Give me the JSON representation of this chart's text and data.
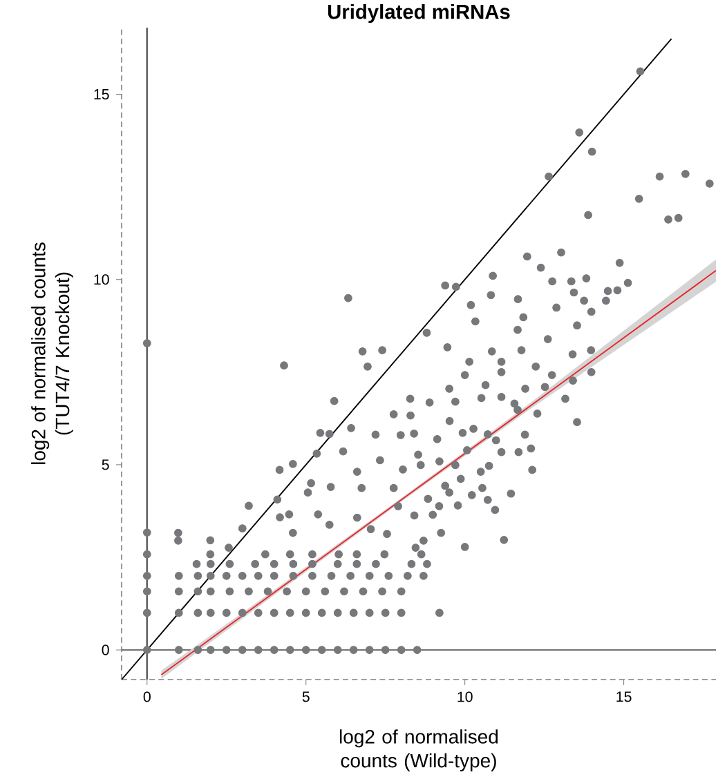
{
  "chart_data": {
    "type": "scatter",
    "title": "Uridylated miRNAs",
    "xlabel": "log2 of normalised counts (Wild-type)",
    "ylabel": "log2 of normalised counts (TUT4/7 Knockout)",
    "xlim": [
      -0.8,
      17.9
    ],
    "ylim": [
      -0.8,
      16.8
    ],
    "xticks": [
      0,
      5,
      10,
      15
    ],
    "yticks": [
      0,
      5,
      10,
      15
    ],
    "ref_lines": [
      {
        "axis": "x",
        "value": 0,
        "color": "#000000",
        "line_style": "solid"
      },
      {
        "axis": "y",
        "value": 0,
        "color": "#555555",
        "line_style": "solid"
      }
    ],
    "series": [
      {
        "color": "#77787b",
        "marker": "circle",
        "x": [
          0,
          0,
          0,
          0,
          0,
          0,
          0,
          1,
          1.6,
          2,
          2.5,
          3,
          3.5,
          4,
          4.5,
          5,
          5.5,
          6,
          6.5,
          7,
          7.5,
          8,
          8.5,
          1,
          1.6,
          2,
          2.5,
          3,
          3.5,
          4,
          4.5,
          5,
          5.5,
          6,
          6.5,
          7,
          7.5,
          8,
          9.2,
          1,
          1.6,
          2,
          2.6,
          3.2,
          3.8,
          4.4,
          5,
          5.6,
          6.2,
          6.8,
          7.4,
          8,
          1,
          1.6,
          2,
          2.5,
          3,
          3.5,
          4,
          4.6,
          5.2,
          5.8,
          6.4,
          7,
          7.6,
          8.2,
          8.7,
          1.56,
          2,
          2.6,
          3.4,
          4,
          4.6,
          5.2,
          6,
          6.6,
          7.2,
          8.32,
          8.81,
          1.99,
          3.72,
          4.5,
          5.2,
          6.03,
          6.6,
          7.47,
          8.63,
          2.57,
          8.45,
          10,
          0.98,
          1.99,
          8.7,
          11.23,
          0.98,
          4.59,
          7.55,
          9.25,
          7.04,
          3,
          5.74,
          6.61,
          4.18,
          4.47,
          5.38,
          8.41,
          8.99,
          10.95,
          3.2,
          7.9,
          9.19,
          9.78,
          4.1,
          8.84,
          10.72,
          10.22,
          11.45,
          5.06,
          9.51,
          6.75,
          7.76,
          10.55,
          5.78,
          9.38,
          5.16,
          9.87,
          6.61,
          10.5,
          4.17,
          8.05,
          12.12,
          4.59,
          8.61,
          9.7,
          10.76,
          9.2,
          7.33,
          8.53,
          5.34,
          10.07,
          6.17,
          11.15,
          11.69,
          12.08,
          10.98,
          9.13,
          7.98,
          7.19,
          11.89,
          10.72,
          5.74,
          8.4,
          5.45,
          9.93,
          10.27,
          6.42,
          13.53,
          9.52,
          8.29,
          7.76,
          12.28,
          11.66,
          11.56,
          8.89,
          9.7,
          5.89,
          8.28,
          13.16,
          10.52,
          11.15,
          9.51,
          11.9,
          12.52,
          10.65,
          13.4,
          10,
          12.74,
          11.15,
          13.98,
          6.94,
          12.23,
          4.31,
          10.14,
          11.15,
          13.39,
          6.78,
          10.85,
          7.4,
          11.78,
          13.97,
          9.45,
          12.61,
          8.8,
          11.66,
          13.53,
          10.33,
          11.84,
          13.98,
          12.88,
          10.19,
          14.44,
          11.67,
          13.75,
          6.33,
          10.82,
          13.43,
          14.5,
          14.8,
          9.72,
          9.38,
          15.13,
          12.75,
          13.35,
          13.82,
          10.88,
          12.39,
          14.87,
          11.96,
          13.03,
          16.4,
          16.72,
          13.88,
          15.48,
          17.7,
          12.64,
          16.13,
          16.94,
          14,
          13.6,
          15.52
        ],
        "values": [
          0,
          1,
          1.58,
          2,
          2.58,
          3.17,
          8.28,
          0,
          0,
          0,
          0,
          0,
          0,
          0,
          0,
          0,
          0,
          0,
          0,
          0,
          0,
          0,
          0,
          1,
          1,
          1,
          1,
          1,
          1,
          1,
          1,
          1,
          1,
          1,
          1,
          1,
          1,
          1,
          1,
          1.58,
          1.58,
          1.58,
          1.58,
          1.58,
          1.58,
          1.58,
          1.58,
          1.58,
          1.58,
          1.58,
          1.58,
          1.58,
          2,
          2,
          2,
          2,
          2,
          2,
          2,
          2,
          2,
          2,
          2,
          2,
          2,
          2,
          2,
          2.32,
          2.32,
          2.32,
          2.32,
          2.32,
          2.32,
          2.32,
          2.32,
          2.32,
          2.32,
          2.32,
          2.32,
          2.58,
          2.58,
          2.58,
          2.58,
          2.58,
          2.58,
          2.58,
          2.58,
          2.76,
          2.76,
          2.78,
          2.95,
          2.96,
          2.95,
          2.97,
          3.16,
          3.16,
          3.13,
          3.16,
          3.26,
          3.28,
          3.38,
          3.57,
          3.58,
          3.66,
          3.66,
          3.63,
          3.65,
          3.78,
          3.89,
          3.88,
          3.88,
          3.9,
          4.06,
          4.08,
          4.05,
          4.18,
          4.22,
          4.25,
          4.25,
          4.37,
          4.37,
          4.37,
          4.4,
          4.43,
          4.5,
          4.62,
          4.81,
          4.81,
          4.86,
          4.87,
          4.86,
          5.02,
          4.99,
          4.99,
          4.97,
          5.09,
          5.12,
          5.27,
          5.3,
          5.39,
          5.36,
          5.34,
          5.34,
          5.44,
          5.66,
          5.69,
          5.8,
          5.81,
          5.81,
          5.82,
          5.83,
          5.84,
          5.86,
          5.86,
          5.97,
          5.99,
          6.15,
          6.18,
          6.33,
          6.36,
          6.38,
          6.48,
          6.65,
          6.68,
          6.7,
          6.72,
          6.78,
          6.78,
          6.8,
          6.83,
          7.05,
          7.05,
          7.1,
          7.15,
          7.27,
          7.42,
          7.42,
          7.5,
          7.5,
          7.65,
          7.65,
          7.68,
          7.78,
          7.78,
          7.98,
          8.06,
          8.06,
          8.09,
          8.09,
          8.09,
          8.17,
          8.39,
          8.56,
          8.64,
          8.76,
          8.87,
          8.98,
          9.13,
          9.24,
          9.31,
          9.43,
          9.47,
          9.43,
          9.5,
          9.58,
          9.65,
          9.69,
          9.71,
          9.8,
          9.84,
          9.91,
          9.95,
          9.95,
          10.03,
          10.1,
          10.32,
          10.45,
          10.62,
          10.73,
          11.62,
          11.66,
          11.74,
          12.18,
          12.59,
          12.78,
          12.78,
          12.85,
          13.45,
          13.97,
          15.62
        ]
      },
      {
        "type": "line",
        "color": "#e8262a",
        "marker": "none",
        "line_style": "solid",
        "x": [
          0.45,
          4,
          8,
          12,
          17.9
        ],
        "values": [
          -0.67,
          1.55,
          4.05,
          6.55,
          10.24
        ],
        "lower": [
          -0.78,
          1.48,
          4.0,
          6.47,
          9.94
        ],
        "upper": [
          -0.56,
          1.62,
          4.1,
          6.63,
          10.54
        ]
      },
      {
        "type": "line",
        "color": "#000000",
        "marker": "none",
        "line_style": "solid",
        "x": [
          -0.8,
          16.5
        ],
        "values": [
          -0.8,
          16.5
        ]
      }
    ]
  }
}
